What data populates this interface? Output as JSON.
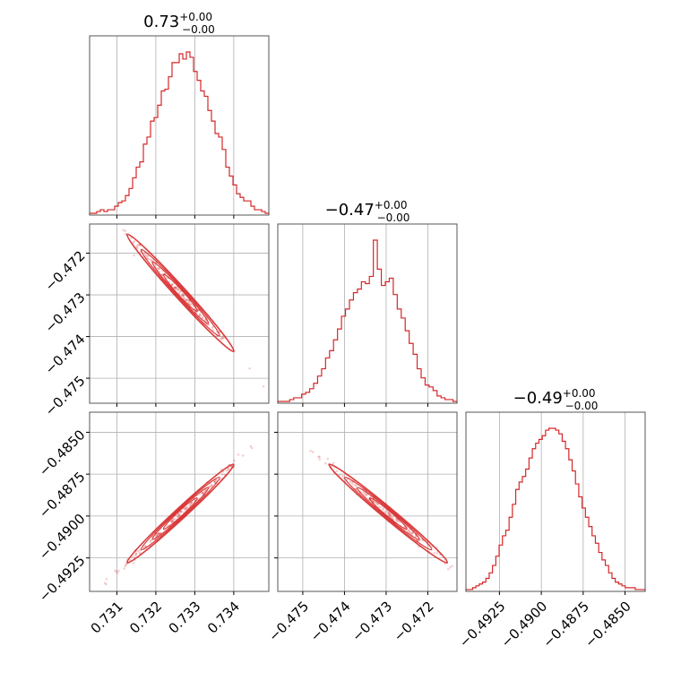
{
  "chart_data": {
    "type": "corner",
    "color": "#d62728",
    "parameters": [
      {
        "title_main": "0.73",
        "title_plus": "+0.00",
        "title_minus": "−0.00",
        "range": [
          0.7303,
          0.7349
        ],
        "ticks": [
          0.731,
          0.732,
          0.733,
          0.734
        ],
        "tick_labels": [
          "0.731",
          "0.732",
          "0.733",
          "0.734"
        ],
        "mean": 0.73263,
        "sd": 0.00053
      },
      {
        "title_main": "−0.47",
        "title_plus": "+0.00",
        "title_minus": "−0.00",
        "range": [
          -0.4756,
          -0.4713
        ],
        "ticks": [
          -0.475,
          -0.474,
          -0.473,
          -0.472
        ],
        "tick_labels": [
          "−0.475",
          "−0.474",
          "−0.473",
          "−0.472"
        ],
        "mean": -0.47295,
        "sd": 0.00055
      },
      {
        "title_main": "−0.49",
        "title_plus": "+0.00",
        "title_minus": "−0.00",
        "range": [
          -0.4945,
          -0.4838
        ],
        "ticks": [
          -0.4925,
          -0.49,
          -0.4875,
          -0.485
        ],
        "tick_labels": [
          "−0.4925",
          "−0.4900",
          "−0.4875",
          "−0.4850"
        ],
        "mean": -0.48985,
        "sd": 0.00115
      }
    ],
    "histograms": [
      {
        "bins": [
          0.7303,
          0.7349
        ],
        "counts": [
          1,
          1,
          2,
          3,
          2,
          3,
          3,
          5,
          7,
          8,
          11,
          15,
          21,
          27,
          30,
          40,
          44,
          53,
          55,
          62,
          70,
          71,
          78,
          86,
          86,
          91,
          88,
          92,
          89,
          81,
          76,
          70,
          67,
          59,
          53,
          46,
          44,
          37,
          27,
          22,
          17,
          12,
          10,
          8,
          8,
          5,
          3,
          3,
          2,
          1
        ]
      },
      {
        "bins": [
          -0.4756,
          -0.4713
        ],
        "counts": [
          1,
          1,
          1,
          2,
          3,
          3,
          5,
          6,
          8,
          11,
          15,
          19,
          25,
          29,
          35,
          41,
          48,
          52,
          57,
          61,
          63,
          67,
          66,
          70,
          90,
          74,
          65,
          67,
          69,
          60,
          52,
          47,
          40,
          33,
          27,
          19,
          14,
          10,
          9,
          7,
          4,
          3,
          2,
          2,
          1
        ]
      },
      {
        "bins": [
          -0.4945,
          -0.4838
        ],
        "counts": [
          1,
          1,
          2,
          3,
          4,
          5,
          7,
          10,
          14,
          19,
          25,
          30,
          33,
          40,
          47,
          55,
          59,
          62,
          66,
          72,
          77,
          80,
          82,
          84,
          87,
          88,
          88,
          87,
          85,
          81,
          77,
          71,
          65,
          58,
          51,
          45,
          40,
          35,
          30,
          26,
          21,
          17,
          14,
          10,
          7,
          5,
          4,
          3,
          2,
          2,
          2,
          1,
          1,
          1
        ]
      }
    ],
    "pairs": [
      {
        "x": 0,
        "y": 1,
        "corr": -0.99
      },
      {
        "x": 0,
        "y": 2,
        "corr": 0.99
      },
      {
        "x": 1,
        "y": 2,
        "corr": -0.99
      }
    ],
    "grid": true
  }
}
